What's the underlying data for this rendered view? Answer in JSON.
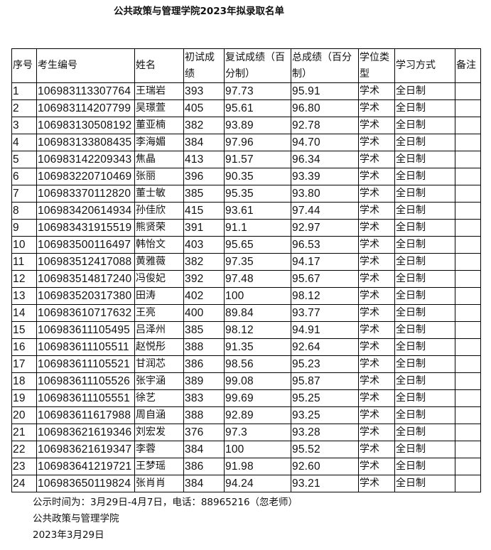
{
  "title": "公共政策与管理学院2023年拟录取名单",
  "headers": [
    "序号",
    "考生编号",
    "姓名",
    "初试成绩",
    "复试成绩（百分制）",
    "总成绩（百分制）",
    "学位类型",
    "学习方式",
    "备注"
  ],
  "rows": [
    [
      "1",
      "106983113307764",
      "王瑞岩",
      "393",
      "97.73",
      "95.91",
      "学术",
      "全日制",
      ""
    ],
    [
      "2",
      "106983114207799",
      "吴璟萱",
      "405",
      "95.61",
      "96.80",
      "学术",
      "全日制",
      ""
    ],
    [
      "3",
      "106983130508192",
      "董亚楠",
      "382",
      "93.89",
      "92.78",
      "学术",
      "全日制",
      ""
    ],
    [
      "4",
      "106983133808435",
      "李海媚",
      "384",
      "97.96",
      "94.70",
      "学术",
      "全日制",
      ""
    ],
    [
      "5",
      "106983142209343",
      "焦晶",
      "413",
      "91.57",
      "96.34",
      "学术",
      "全日制",
      ""
    ],
    [
      "6",
      "106983220710469",
      "张丽",
      "396",
      "90.35",
      "93.39",
      "学术",
      "全日制",
      ""
    ],
    [
      "7",
      "106983370112820",
      "董士敏",
      "385",
      "95.35",
      "93.80",
      "学术",
      "全日制",
      ""
    ],
    [
      "8",
      "106983420614934",
      "孙佳欣",
      "415",
      "93.61",
      "97.44",
      "学术",
      "全日制",
      ""
    ],
    [
      "9",
      "106983431915519",
      "熊贤荣",
      "391",
      "91.1",
      "92.97",
      "学术",
      "全日制",
      ""
    ],
    [
      "10",
      "106983500116497",
      "韩怡文",
      "403",
      "95.65",
      "96.53",
      "学术",
      "全日制",
      ""
    ],
    [
      "11",
      "106983512417088",
      "黄雅薇",
      "382",
      "97.35",
      "94.17",
      "学术",
      "全日制",
      ""
    ],
    [
      "12",
      "106983514817240",
      "冯俊妃",
      "392",
      "97.48",
      "95.67",
      "学术",
      "全日制",
      ""
    ],
    [
      "13",
      "106983520317380",
      "田涛",
      "402",
      "100",
      "98.12",
      "学术",
      "全日制",
      ""
    ],
    [
      "14",
      "106983610717632",
      "王亮",
      "400",
      "89.84",
      "93.77",
      "学术",
      "全日制",
      ""
    ],
    [
      "15",
      "106983611105495",
      "吕泽州",
      "385",
      "98.12",
      "94.91",
      "学术",
      "全日制",
      ""
    ],
    [
      "16",
      "106983611105511",
      "赵悦彤",
      "388",
      "91.35",
      "92.64",
      "学术",
      "全日制",
      ""
    ],
    [
      "17",
      "106983611105521",
      "甘润芯",
      "386",
      "98.56",
      "95.23",
      "学术",
      "全日制",
      ""
    ],
    [
      "18",
      "106983611105526",
      "张宇涵",
      "389",
      "99.08",
      "95.87",
      "学术",
      "全日制",
      ""
    ],
    [
      "19",
      "106983611105551",
      "徐艺",
      "383",
      "99.69",
      "95.25",
      "学术",
      "全日制",
      ""
    ],
    [
      "20",
      "106983611617988",
      "周自涵",
      "388",
      "92.89",
      "93.25",
      "学术",
      "全日制",
      ""
    ],
    [
      "21",
      "106983621619346",
      "刘宏发",
      "376",
      "97.3",
      "93.28",
      "学术",
      "全日制",
      ""
    ],
    [
      "22",
      "106983621619347",
      "李蓉",
      "384",
      "100",
      "95.52",
      "学术",
      "全日制",
      ""
    ],
    [
      "23",
      "106983641219721",
      "王梦瑶",
      "386",
      "91.98",
      "92.60",
      "学术",
      "全日制",
      ""
    ],
    [
      "24",
      "106983650119824",
      "张肖肖",
      "384",
      "94.24",
      "93.21",
      "学术",
      "全日制",
      ""
    ]
  ],
  "footer": {
    "notice": "公示时间为：3月29日-4月7日，电话：88965216（忽老师）",
    "org": "公共政策与管理学院",
    "date": "2023年3月29日"
  }
}
